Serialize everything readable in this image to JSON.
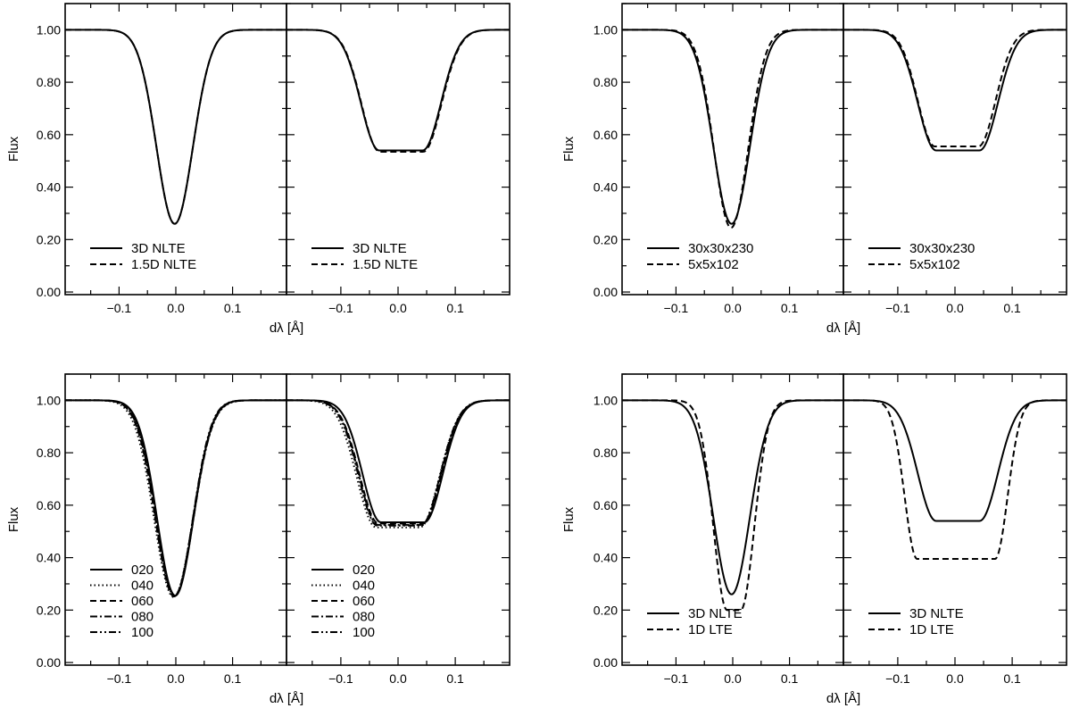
{
  "figure": {
    "y_ticks": [
      "0.00",
      "0.20",
      "0.40",
      "0.60",
      "0.80",
      "1.00"
    ],
    "x_ticks": [
      "−0.1",
      "0.0",
      "0.1"
    ]
  },
  "chart_data": [
    {
      "type": "line",
      "ylabel": "Flux",
      "xlabel": "dλ [Å]",
      "xlim": [
        -0.195,
        0.195
      ],
      "ylim": [
        -0.01,
        1.1
      ],
      "panels": [
        {
          "series": [
            {
              "name": "3D NLTE",
              "style": "solid",
              "line": {
                "depth": 0.74,
                "sigma": 0.032,
                "shift": -0.002,
                "flat": 0.0
              }
            },
            {
              "name": "1.5D NLTE",
              "style": "dashed",
              "line": {
                "depth": 0.74,
                "sigma": 0.032,
                "shift": -0.002,
                "flat": 0.0
              }
            }
          ]
        },
        {
          "series": [
            {
              "name": "3D NLTE",
              "style": "solid",
              "line": {
                "depth": 0.46,
                "sigma": 0.032,
                "shift": 0.005,
                "flat": 0.038
              }
            },
            {
              "name": "1.5D NLTE",
              "style": "dashed",
              "line": {
                "depth": 0.465,
                "sigma": 0.032,
                "shift": 0.006,
                "flat": 0.038
              }
            }
          ]
        }
      ]
    },
    {
      "type": "line",
      "ylabel": "Flux",
      "xlabel": "dλ [Å]",
      "xlim": [
        -0.195,
        0.195
      ],
      "ylim": [
        -0.01,
        1.1
      ],
      "panels": [
        {
          "series": [
            {
              "name": "30x30x230",
              "style": "solid",
              "line": {
                "depth": 0.74,
                "sigma": 0.032,
                "shift": -0.002,
                "flat": 0.0
              }
            },
            {
              "name": "5x5x102",
              "style": "dashed",
              "line": {
                "depth": 0.755,
                "sigma": 0.03,
                "shift": -0.003,
                "flat": 0.0
              }
            }
          ]
        },
        {
          "series": [
            {
              "name": "30x30x230",
              "style": "solid",
              "line": {
                "depth": 0.46,
                "sigma": 0.032,
                "shift": 0.005,
                "flat": 0.038
              }
            },
            {
              "name": "5x5x102",
              "style": "dashed",
              "line": {
                "depth": 0.445,
                "sigma": 0.03,
                "shift": 0.003,
                "flat": 0.038
              }
            }
          ]
        }
      ]
    },
    {
      "type": "line",
      "ylabel": "Flux",
      "xlabel": "dλ [Å]",
      "xlim": [
        -0.195,
        0.195
      ],
      "ylim": [
        -0.01,
        1.1
      ],
      "panels": [
        {
          "series": [
            {
              "name": "020",
              "style": "solid",
              "line": {
                "depth": 0.745,
                "sigma": 0.032,
                "shift": -0.001,
                "flat": 0.0
              }
            },
            {
              "name": "040",
              "style": "dotted",
              "line": {
                "depth": 0.75,
                "sigma": 0.034,
                "shift": -0.004,
                "flat": 0.0
              }
            },
            {
              "name": "060",
              "style": "dashed",
              "line": {
                "depth": 0.748,
                "sigma": 0.033,
                "shift": -0.003,
                "flat": 0.0
              }
            },
            {
              "name": "080",
              "style": "dashdot",
              "line": {
                "depth": 0.746,
                "sigma": 0.033,
                "shift": -0.002,
                "flat": 0.0
              }
            },
            {
              "name": "100",
              "style": "dashdotdot",
              "line": {
                "depth": 0.744,
                "sigma": 0.032,
                "shift": -0.002,
                "flat": 0.0
              }
            }
          ]
        },
        {
          "series": [
            {
              "name": "020",
              "style": "solid",
              "line": {
                "depth": 0.465,
                "sigma": 0.032,
                "shift": 0.008,
                "flat": 0.038
              }
            },
            {
              "name": "040",
              "style": "dotted",
              "line": {
                "depth": 0.485,
                "sigma": 0.034,
                "shift": 0.0,
                "flat": 0.038
              }
            },
            {
              "name": "060",
              "style": "dashed",
              "line": {
                "depth": 0.47,
                "sigma": 0.033,
                "shift": 0.004,
                "flat": 0.038
              }
            },
            {
              "name": "080",
              "style": "dashdot",
              "line": {
                "depth": 0.475,
                "sigma": 0.033,
                "shift": 0.003,
                "flat": 0.038
              }
            },
            {
              "name": "100",
              "style": "dashdotdot",
              "line": {
                "depth": 0.478,
                "sigma": 0.033,
                "shift": 0.002,
                "flat": 0.038
              }
            }
          ]
        }
      ]
    },
    {
      "type": "line",
      "ylabel": "Flux",
      "xlabel": "dλ [Å]",
      "xlim": [
        -0.195,
        0.195
      ],
      "ylim": [
        -0.01,
        1.1
      ],
      "panels": [
        {
          "series": [
            {
              "name": "3D NLTE",
              "style": "solid",
              "line": {
                "depth": 0.74,
                "sigma": 0.032,
                "shift": -0.002,
                "flat": 0.0
              }
            },
            {
              "name": "1D LTE",
              "style": "dashed",
              "line": {
                "depth": 0.8,
                "sigma": 0.024,
                "shift": 0.002,
                "flat": 0.012
              }
            }
          ]
        },
        {
          "series": [
            {
              "name": "3D NLTE",
              "style": "solid",
              "line": {
                "depth": 0.46,
                "sigma": 0.032,
                "shift": 0.005,
                "flat": 0.038
              }
            },
            {
              "name": "1D LTE",
              "style": "dashed",
              "line": {
                "depth": 0.605,
                "sigma": 0.022,
                "shift": 0.002,
                "flat": 0.068
              }
            }
          ]
        }
      ]
    }
  ]
}
